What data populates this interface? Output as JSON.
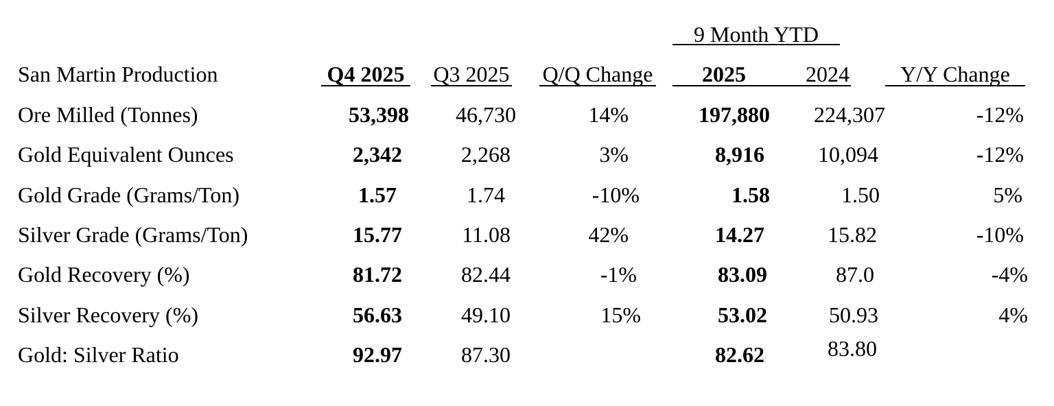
{
  "ytd_group_header": "9 Month YTD",
  "headers": {
    "title": "San Martin Production",
    "q4": "Q4 2025",
    "q3": "Q3 2025",
    "qq_change": "Q/Q Change",
    "ytd_2025": "2025",
    "ytd_2024": "2024",
    "yy_change": "Y/Y Change"
  },
  "rows": [
    {
      "label": "Ore Milled (Tonnes)",
      "q4": "53,398",
      "q3": "46,730",
      "qq": "14%",
      "y2025": "197,880",
      "y2024": "224,307",
      "yy": "-12%"
    },
    {
      "label": "Gold Equivalent Ounces",
      "q4": "2,342",
      "q3": "2,268",
      "qq": "3%",
      "y2025": "8,916",
      "y2024": "10,094",
      "yy": "-12%"
    },
    {
      "label": "Gold Grade (Grams/Ton)",
      "q4": "1.57",
      "q3": "1.74",
      "qq": "-10%",
      "y2025": "1.58",
      "y2024": "1.50",
      "yy": "5%"
    },
    {
      "label": "Silver Grade (Grams/Ton)",
      "q4": "15.77",
      "q3": "11.08",
      "qq": "42%",
      "y2025": "14.27",
      "y2024": "15.82",
      "yy": "-10%"
    },
    {
      "label": "Gold Recovery (%)",
      "q4": "81.72",
      "q3": "82.44",
      "qq": "-1%",
      "y2025": "83.09",
      "y2024": "87.0",
      "yy": "-4%"
    },
    {
      "label": "Silver Recovery (%)",
      "q4": "56.63",
      "q3": "49.10",
      "qq": "15%",
      "y2025": "53.02",
      "y2024": "50.93",
      "yy": "4%"
    },
    {
      "label": "Gold: Silver Ratio",
      "q4": "92.97",
      "q3": "87.30",
      "qq": "",
      "y2025": "82.62",
      "y2024": "83.80",
      "yy": ""
    }
  ]
}
